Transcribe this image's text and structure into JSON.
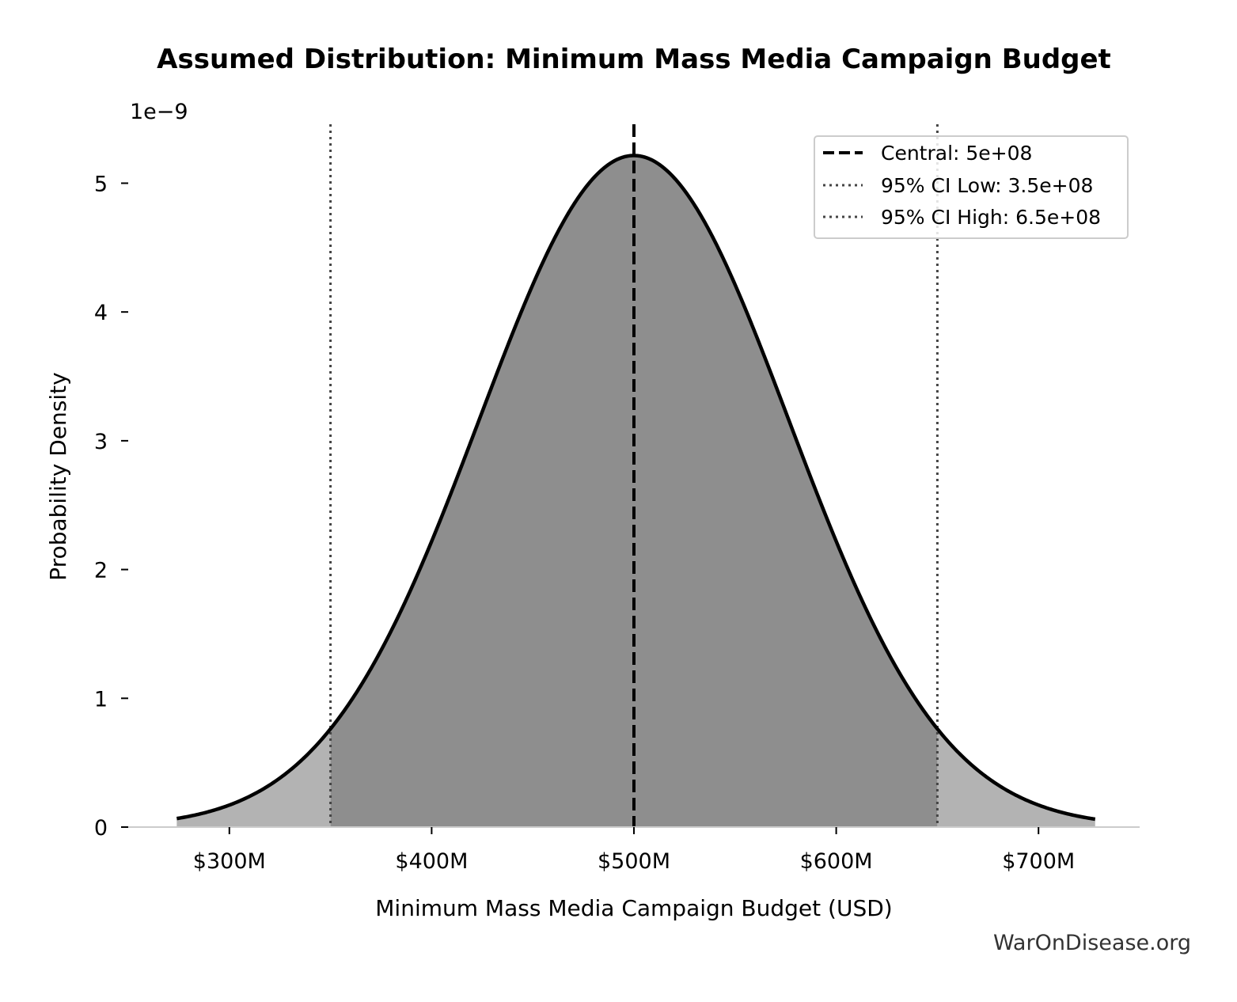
{
  "chart_data": {
    "type": "area",
    "title": "Assumed Distribution: Minimum Mass Media Campaign Budget",
    "xlabel": "Minimum Mass Media Campaign Budget (USD)",
    "ylabel": "Probability Density",
    "y_offset_label": "1e−9",
    "y_scale_exponent": -9,
    "xlim": [
      250000000,
      750000000
    ],
    "ylim": [
      0,
      5.47
    ],
    "x_ticks": [
      300000000,
      400000000,
      500000000,
      600000000,
      700000000
    ],
    "x_tick_labels": [
      "$300M",
      "$400M",
      "$500M",
      "$600M",
      "$700M"
    ],
    "y_ticks": [
      0,
      1,
      2,
      3,
      4,
      5
    ],
    "y_tick_labels": [
      "0",
      "1",
      "2",
      "3",
      "4",
      "5"
    ],
    "grid": false,
    "legend_position": "top-right",
    "distribution": {
      "kind": "normal",
      "mean": 500000000,
      "std": 76500000,
      "x_range": [
        274000000,
        728000000
      ]
    },
    "series": [
      {
        "name": "Central: 5e+08",
        "kind": "vline",
        "x": 500000000,
        "style": "dashed",
        "color": "#000000"
      },
      {
        "name": "95% CI Low: 3.5e+08",
        "kind": "vline",
        "x": 350000000,
        "style": "dotted",
        "color": "#444444"
      },
      {
        "name": "95% CI High: 6.5e+08",
        "kind": "vline",
        "x": 650000000,
        "style": "dotted",
        "color": "#444444"
      }
    ],
    "colors": {
      "curve": "#000000",
      "fill_ci": "#8e8e8e",
      "fill_tails": "#b3b3b3",
      "spines": "#cccccc"
    }
  },
  "watermark": "WarOnDisease.org"
}
